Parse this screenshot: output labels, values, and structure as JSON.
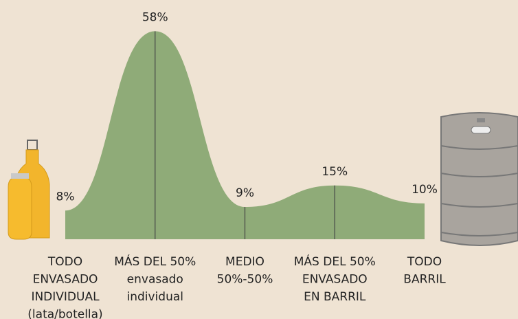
{
  "chart_data": {
    "type": "area",
    "categories": [
      [
        "TODO",
        "ENVASADO",
        "INDIVIDUAL",
        "(lata/botella)"
      ],
      [
        "MÁS DEL 50%",
        "envasado",
        "individual"
      ],
      [
        "MEDIO",
        "50%-50%"
      ],
      [
        "MÁS DEL 50%",
        "ENVASADO",
        "EN BARRIL"
      ],
      [
        "TODO",
        "BARRIL"
      ]
    ],
    "values": [
      8,
      58,
      9,
      15,
      10
    ],
    "value_labels": [
      "8%",
      "58%",
      "9%",
      "15%",
      "10%"
    ],
    "color": "#8fab78",
    "ylim": [
      0,
      60
    ]
  }
}
